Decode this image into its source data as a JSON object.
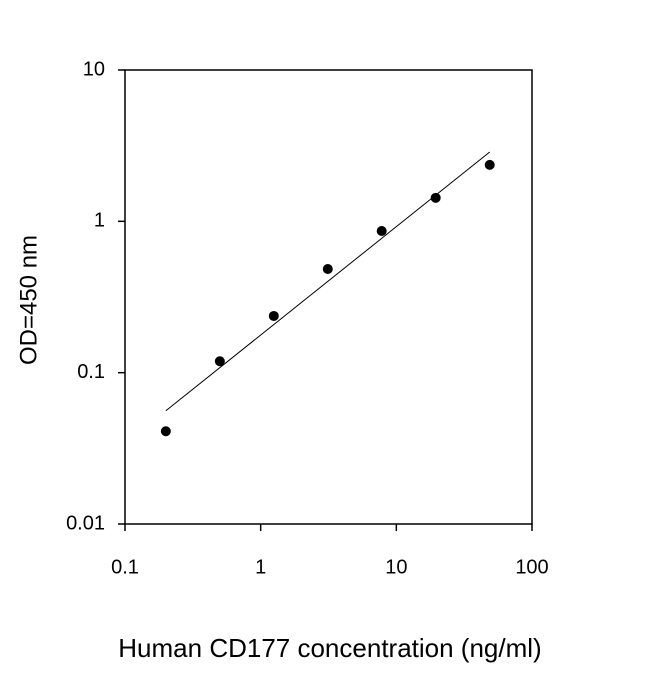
{
  "chart_data": {
    "type": "scatter",
    "xlabel": "Human CD177 concentration (ng/ml)",
    "ylabel": "OD=450 nm",
    "x": [
      0.2,
      0.5,
      1.25,
      3.125,
      7.8,
      19.5,
      48.8
    ],
    "values": [
      0.041,
      0.119,
      0.237,
      0.484,
      0.863,
      1.43,
      2.36
    ],
    "color": "#000000",
    "fit": {
      "x": [
        0.2,
        48.8
      ],
      "values": [
        0.056,
        2.87
      ]
    },
    "xlog": true,
    "ylog": true,
    "xlim": [
      0.1,
      100
    ],
    "ylim": [
      0.01,
      10
    ],
    "xticks": [
      0.1,
      1,
      10,
      100
    ],
    "yticks": [
      0.01,
      0.1,
      1,
      10
    ]
  }
}
